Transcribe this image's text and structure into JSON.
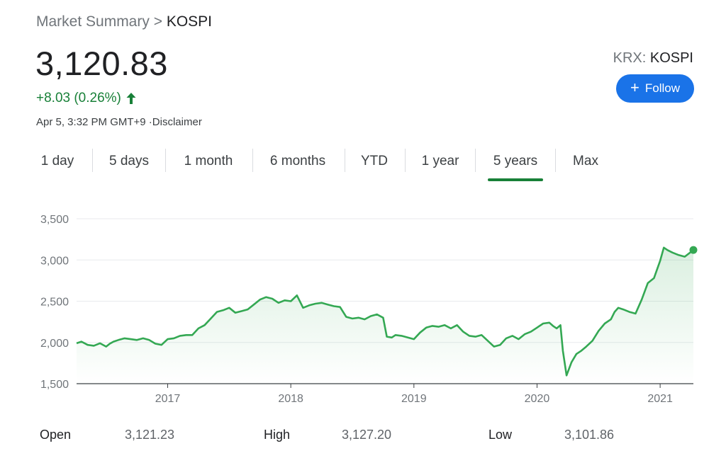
{
  "breadcrumb": {
    "parent": "Market Summary",
    "separator": ">",
    "current": "KOSPI"
  },
  "quote": {
    "price": "3,120.83",
    "change": "+8.03 (0.26%)",
    "direction": "up",
    "timestamp": "Apr 5, 3:32 PM GMT+9 ·Disclaimer",
    "exchange_prefix": "KRX:",
    "exchange_symbol": "KOSPI"
  },
  "follow_button": {
    "label": "Follow"
  },
  "tabs": [
    "1 day",
    "5 days",
    "1 month",
    "6 months",
    "YTD",
    "1 year",
    "5 years",
    "Max"
  ],
  "active_tab": "5 years",
  "colors": {
    "up": "#188038",
    "line": "#34a853",
    "accent": "#1a73e8"
  },
  "chart_data": {
    "type": "area",
    "y_ticks": [
      "1,500",
      "2,000",
      "2,500",
      "3,000",
      "3,500"
    ],
    "x_ticks": [
      "2017",
      "2018",
      "2019",
      "2020",
      "2021"
    ],
    "ylim": [
      1500,
      3500
    ],
    "xlim": [
      2016.26,
      2021.27
    ],
    "grid": true,
    "x": [
      2016.26,
      2016.3,
      2016.35,
      2016.4,
      2016.45,
      2016.5,
      2016.53,
      2016.56,
      2016.6,
      2016.65,
      2016.7,
      2016.75,
      2016.8,
      2016.85,
      2016.9,
      2016.95,
      2017.0,
      2017.05,
      2017.1,
      2017.15,
      2017.2,
      2017.25,
      2017.3,
      2017.35,
      2017.4,
      2017.45,
      2017.5,
      2017.55,
      2017.6,
      2017.65,
      2017.7,
      2017.75,
      2017.8,
      2017.85,
      2017.9,
      2017.95,
      2018.0,
      2018.05,
      2018.1,
      2018.15,
      2018.2,
      2018.25,
      2018.3,
      2018.35,
      2018.4,
      2018.45,
      2018.5,
      2018.55,
      2018.6,
      2018.65,
      2018.7,
      2018.75,
      2018.78,
      2018.82,
      2018.85,
      2018.9,
      2018.95,
      2019.0,
      2019.05,
      2019.1,
      2019.15,
      2019.2,
      2019.25,
      2019.3,
      2019.35,
      2019.4,
      2019.45,
      2019.5,
      2019.55,
      2019.6,
      2019.65,
      2019.7,
      2019.75,
      2019.8,
      2019.85,
      2019.9,
      2019.95,
      2020.0,
      2020.05,
      2020.1,
      2020.13,
      2020.16,
      2020.19,
      2020.21,
      2020.24,
      2020.28,
      2020.32,
      2020.36,
      2020.4,
      2020.45,
      2020.5,
      2020.55,
      2020.6,
      2020.63,
      2020.66,
      2020.7,
      2020.75,
      2020.8,
      2020.85,
      2020.9,
      2020.95,
      2021.0,
      2021.03,
      2021.06,
      2021.1,
      2021.15,
      2021.2,
      2021.27
    ],
    "values": [
      1990,
      2010,
      1970,
      1960,
      1990,
      1950,
      1985,
      2010,
      2030,
      2050,
      2040,
      2030,
      2050,
      2030,
      1985,
      1970,
      2040,
      2050,
      2080,
      2090,
      2090,
      2170,
      2210,
      2290,
      2370,
      2390,
      2420,
      2360,
      2380,
      2400,
      2460,
      2520,
      2550,
      2530,
      2480,
      2510,
      2500,
      2570,
      2420,
      2450,
      2470,
      2480,
      2460,
      2440,
      2430,
      2310,
      2290,
      2300,
      2280,
      2320,
      2340,
      2300,
      2070,
      2060,
      2090,
      2080,
      2060,
      2040,
      2120,
      2180,
      2200,
      2190,
      2210,
      2170,
      2210,
      2130,
      2080,
      2070,
      2090,
      2020,
      1950,
      1970,
      2050,
      2080,
      2040,
      2100,
      2130,
      2180,
      2230,
      2240,
      2200,
      2170,
      2210,
      1900,
      1600,
      1760,
      1860,
      1900,
      1950,
      2020,
      2140,
      2230,
      2280,
      2370,
      2420,
      2400,
      2370,
      2350,
      2520,
      2720,
      2780,
      2990,
      3150,
      3120,
      3090,
      3060,
      3040,
      3120.83
    ]
  },
  "stats": [
    {
      "label": "Open",
      "value": "3,121.23"
    },
    {
      "label": "High",
      "value": "3,127.20"
    },
    {
      "label": "Low",
      "value": "3,101.86"
    }
  ]
}
